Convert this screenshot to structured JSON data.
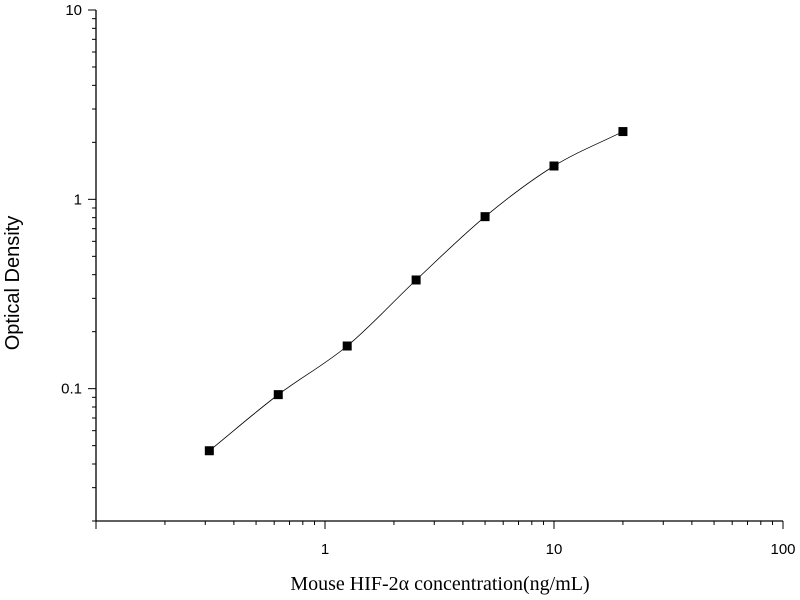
{
  "chart_data": {
    "type": "scatter",
    "title": "",
    "xlabel": "Mouse HIF-2α   concentration(ng/mL)",
    "ylabel": "Optical Density",
    "xscale": "log",
    "yscale": "log",
    "xlim": [
      0.1,
      100
    ],
    "ylim": [
      0.02,
      10
    ],
    "x_ticks": [
      {
        "value": 1,
        "label": "1"
      },
      {
        "value": 10,
        "label": "10"
      },
      {
        "value": 100,
        "label": "100"
      }
    ],
    "y_ticks": [
      {
        "value": 0.1,
        "label": "0.1"
      },
      {
        "value": 1,
        "label": "1"
      },
      {
        "value": 10,
        "label": "10"
      }
    ],
    "grid": false,
    "legend": "none",
    "marker": "square",
    "marker_color": "#000000",
    "fit_line": "smooth",
    "series": [
      {
        "points": [
          {
            "x": 0.3125,
            "y": 0.047
          },
          {
            "x": 0.625,
            "y": 0.093
          },
          {
            "x": 1.25,
            "y": 0.168
          },
          {
            "x": 2.5,
            "y": 0.375
          },
          {
            "x": 5,
            "y": 0.81
          },
          {
            "x": 10,
            "y": 1.5
          },
          {
            "x": 20,
            "y": 2.28
          }
        ]
      }
    ]
  }
}
